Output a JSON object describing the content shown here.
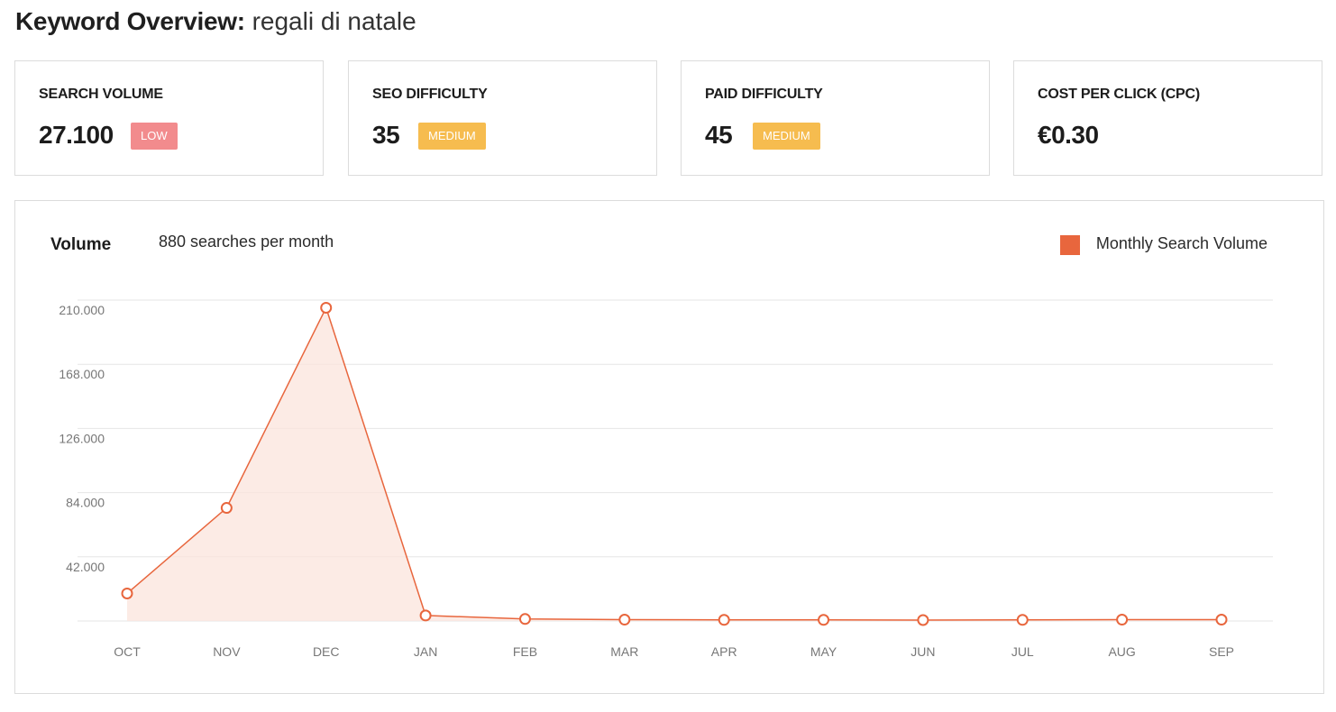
{
  "header": {
    "title": "Keyword Overview:",
    "keyword": "regali di natale"
  },
  "metrics": [
    {
      "label": "SEARCH VOLUME",
      "value": "27.100",
      "badge": "LOW",
      "badge_color": "#f28b8d"
    },
    {
      "label": "SEO DIFFICULTY",
      "value": "35",
      "badge": "MEDIUM",
      "badge_color": "#f6bc4f"
    },
    {
      "label": "PAID DIFFICULTY",
      "value": "45",
      "badge": "MEDIUM",
      "badge_color": "#f6bc4f"
    },
    {
      "label": "COST PER CLICK (CPC)",
      "value": "€0.30"
    }
  ],
  "chart_panel": {
    "heading": "Volume",
    "subheading": "880 searches per month",
    "legend_label": "Monthly Search Volume",
    "accent_color": "#e8663d"
  },
  "chart_data": {
    "type": "area",
    "categories": [
      "OCT",
      "NOV",
      "DEC",
      "JAN",
      "FEB",
      "MAR",
      "APR",
      "MAY",
      "JUN",
      "JUL",
      "AUG",
      "SEP"
    ],
    "series": [
      {
        "name": "Monthly Search Volume",
        "values": [
          18000,
          74000,
          205000,
          3600,
          1300,
          880,
          720,
          720,
          590,
          720,
          880,
          880
        ]
      }
    ],
    "yticks": [
      "210.000",
      "168.000",
      "126.000",
      "84.000",
      "42.000"
    ],
    "ytick_values": [
      210000,
      168000,
      126000,
      84000,
      42000
    ],
    "ylim": [
      0,
      210000
    ],
    "grid": true,
    "legend_position": "top-right"
  }
}
